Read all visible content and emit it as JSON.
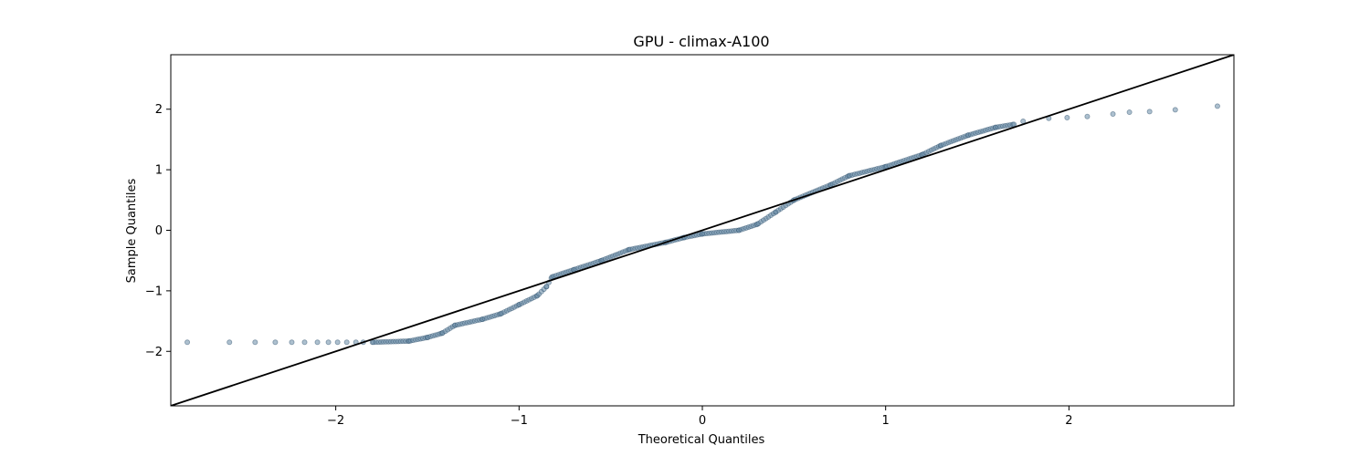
{
  "chart_data": {
    "type": "scatter",
    "title": "GPU - climax-A100",
    "xlabel": "Theoretical Quantiles",
    "ylabel": "Sample Quantiles",
    "xlim": [
      -2.9,
      2.9
    ],
    "ylim": [
      -2.9,
      2.9
    ],
    "xticks": [
      -2,
      -1,
      0,
      1,
      2
    ],
    "yticks": [
      -2,
      -1,
      0,
      1,
      2
    ],
    "xtick_labels": [
      "−2",
      "−1",
      "0",
      "1",
      "2"
    ],
    "ytick_labels": [
      "−2",
      "−1",
      "0",
      "1",
      "2"
    ],
    "grid": false,
    "reference_line": {
      "slope": 1,
      "intercept": 0,
      "color": "#000000"
    },
    "marker_color": "#6a8ca8",
    "marker_edge_color": "#2d4f6b",
    "points_anchor": [
      [
        -2.81,
        -1.85
      ],
      [
        -2.58,
        -1.85
      ],
      [
        -2.44,
        -1.85
      ],
      [
        -2.33,
        -1.85
      ],
      [
        -2.24,
        -1.85
      ],
      [
        -2.17,
        -1.85
      ],
      [
        -2.1,
        -1.85
      ],
      [
        -2.04,
        -1.85
      ],
      [
        -1.99,
        -1.85
      ],
      [
        -1.94,
        -1.85
      ],
      [
        -1.89,
        -1.85
      ],
      [
        -1.85,
        -1.85
      ],
      [
        -1.8,
        -1.85
      ],
      [
        -1.6,
        -1.83
      ],
      [
        -1.5,
        -1.77
      ],
      [
        -1.42,
        -1.7
      ],
      [
        -1.35,
        -1.57
      ],
      [
        -1.2,
        -1.47
      ],
      [
        -1.1,
        -1.38
      ],
      [
        -1.0,
        -1.23
      ],
      [
        -0.9,
        -1.08
      ],
      [
        -0.85,
        -0.93
      ],
      [
        -0.82,
        -0.77
      ],
      [
        -0.7,
        -0.65
      ],
      [
        -0.55,
        -0.5
      ],
      [
        -0.4,
        -0.32
      ],
      [
        -0.2,
        -0.2
      ],
      [
        -0.1,
        -0.12
      ],
      [
        0.0,
        -0.06
      ],
      [
        0.2,
        0.0
      ],
      [
        0.3,
        0.1
      ],
      [
        0.4,
        0.3
      ],
      [
        0.5,
        0.5
      ],
      [
        0.7,
        0.75
      ],
      [
        0.8,
        0.9
      ],
      [
        1.0,
        1.05
      ],
      [
        1.2,
        1.25
      ],
      [
        1.3,
        1.4
      ],
      [
        1.45,
        1.57
      ],
      [
        1.6,
        1.7
      ],
      [
        1.7,
        1.75
      ],
      [
        1.75,
        1.8
      ],
      [
        1.89,
        1.85
      ],
      [
        1.99,
        1.86
      ],
      [
        2.1,
        1.88
      ],
      [
        2.24,
        1.92
      ],
      [
        2.33,
        1.95
      ],
      [
        2.44,
        1.96
      ],
      [
        2.58,
        1.99
      ],
      [
        2.81,
        2.05
      ]
    ],
    "fill_points": 260
  }
}
